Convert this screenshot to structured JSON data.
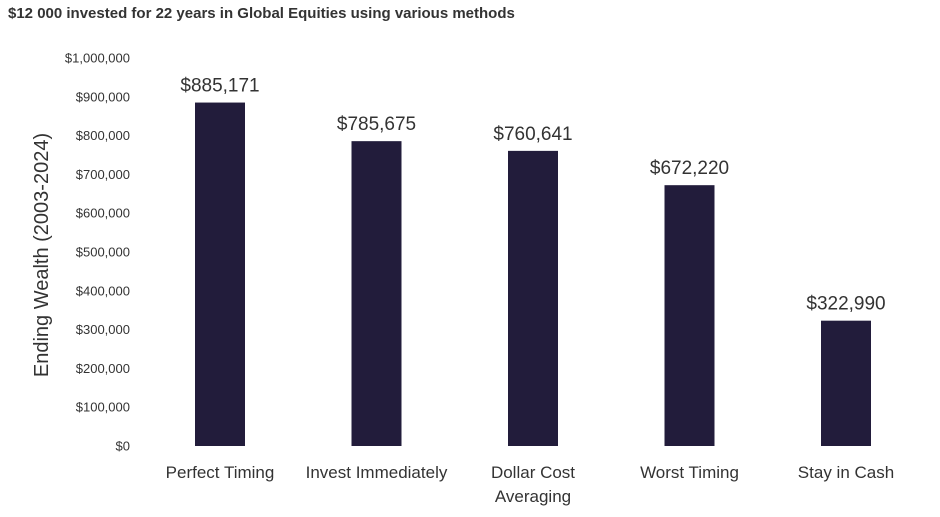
{
  "chart_data": {
    "type": "bar",
    "title": "$12 000 invested for 22 years in Global Equities using various methods",
    "xlabel": "",
    "ylabel": "Ending Wealth (2003-2024)",
    "categories": [
      [
        "Perfect Timing"
      ],
      [
        "Invest Immediately"
      ],
      [
        "Dollar Cost",
        "Averaging"
      ],
      [
        "Worst Timing"
      ],
      [
        "Stay in Cash"
      ]
    ],
    "values": [
      885171,
      785675,
      760641,
      672220,
      322990
    ],
    "data_labels": [
      "$885,171",
      "$785,675",
      "$760,641",
      "$672,220",
      "$322,990"
    ],
    "ylim": [
      0,
      1000000
    ],
    "yticks": [
      0,
      100000,
      200000,
      300000,
      400000,
      500000,
      600000,
      700000,
      800000,
      900000,
      1000000
    ],
    "ytick_labels": [
      "$0",
      "$100,000",
      "$200,000",
      "$300,000",
      "$400,000",
      "$500,000",
      "$600,000",
      "$700,000",
      "$800,000",
      "$900,000",
      "$1,000,000"
    ],
    "bar_color": "#221c3b",
    "grid": false,
    "legend": "none"
  }
}
